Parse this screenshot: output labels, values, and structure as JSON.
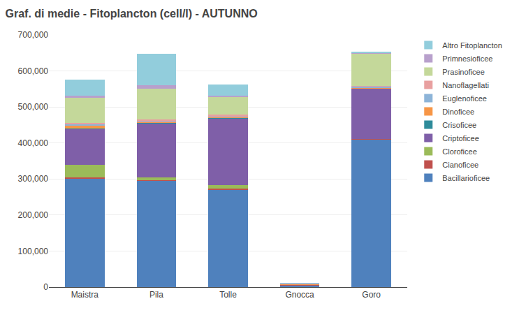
{
  "chart_data": {
    "type": "bar",
    "stacked": true,
    "title": "Graf. di medie - Fitoplancton (cell/l) - AUTUNNO",
    "categories": [
      "Maistra",
      "Pila",
      "Tolle",
      "Gnocca",
      "Goro"
    ],
    "series": [
      {
        "name": "Bacillarioficee",
        "color": "#4F81BD",
        "values": [
          300000,
          295000,
          270000,
          5000,
          410000
        ]
      },
      {
        "name": "Cianoficee",
        "color": "#C0504D",
        "values": [
          5000,
          2000,
          4000,
          1000,
          1000
        ]
      },
      {
        "name": "Cloroficee",
        "color": "#9BBB59",
        "values": [
          35000,
          8000,
          10000,
          500,
          0
        ]
      },
      {
        "name": "Criptoficee",
        "color": "#7F5FA8",
        "values": [
          100000,
          150000,
          185000,
          500,
          140000
        ]
      },
      {
        "name": "Crisoficee",
        "color": "#2E8B9A",
        "values": [
          1000,
          1000,
          1000,
          500,
          1000
        ]
      },
      {
        "name": "Dinoficee",
        "color": "#F79646",
        "values": [
          8000,
          2000,
          3000,
          500,
          2000
        ]
      },
      {
        "name": "Euglenoficee",
        "color": "#8DB4D8",
        "values": [
          3000,
          2000,
          2000,
          500,
          3000
        ]
      },
      {
        "name": "Nanoflagellati",
        "color": "#E8A0A0",
        "values": [
          4000,
          5000,
          3000,
          500,
          1000
        ]
      },
      {
        "name": "Prasinoficee",
        "color": "#C4D89A",
        "values": [
          70000,
          85000,
          50000,
          500,
          90000
        ]
      },
      {
        "name": "Primnesioficee",
        "color": "#B8A0CC",
        "values": [
          5000,
          10000,
          4000,
          500,
          2000
        ]
      },
      {
        "name": "Altro Fitoplancton",
        "color": "#92CDDC",
        "values": [
          45000,
          87000,
          30000,
          500,
          2000
        ]
      }
    ],
    "ylim": [
      0,
      700000
    ],
    "yticks": [
      0,
      {
        "value": 100000,
        "label": "100,000"
      },
      {
        "value": 200000,
        "label": "200,000"
      },
      {
        "value": 300000,
        "label": "300,000"
      },
      {
        "value": 400000,
        "label": "400,000"
      },
      {
        "value": 500000,
        "label": "500,000"
      },
      {
        "value": 600000,
        "label": "600,000"
      },
      {
        "value": 700000,
        "label": "700,000"
      }
    ],
    "grid": true,
    "legend": "upper right"
  }
}
